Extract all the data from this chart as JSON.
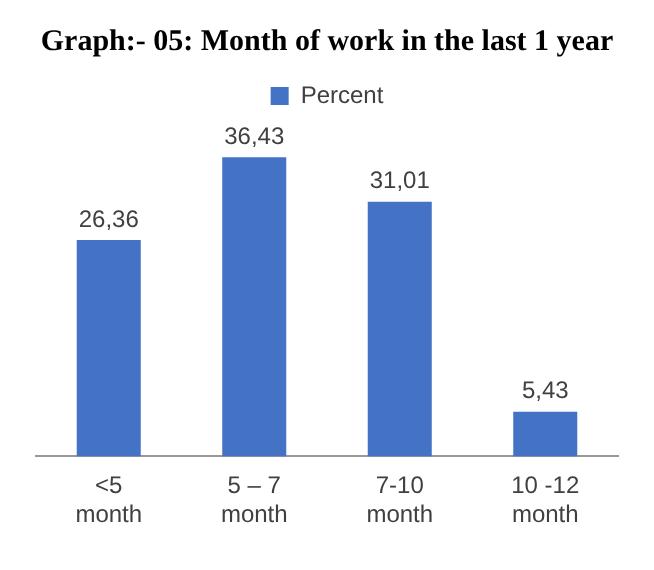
{
  "chart_data": {
    "type": "bar",
    "title": "Graph:- 05: Month of work in the last 1 year",
    "categories": [
      "<5 month",
      "5 – 7 month",
      "7-10 month",
      "10 -12 month"
    ],
    "series": [
      {
        "name": "Percent",
        "color": "#4472c4",
        "values": [
          26.36,
          36.43,
          31.01,
          5.43
        ],
        "value_labels": [
          "26,36",
          "36,43",
          "31,01",
          "5,43"
        ]
      }
    ],
    "legend": "top",
    "grid": false
  }
}
